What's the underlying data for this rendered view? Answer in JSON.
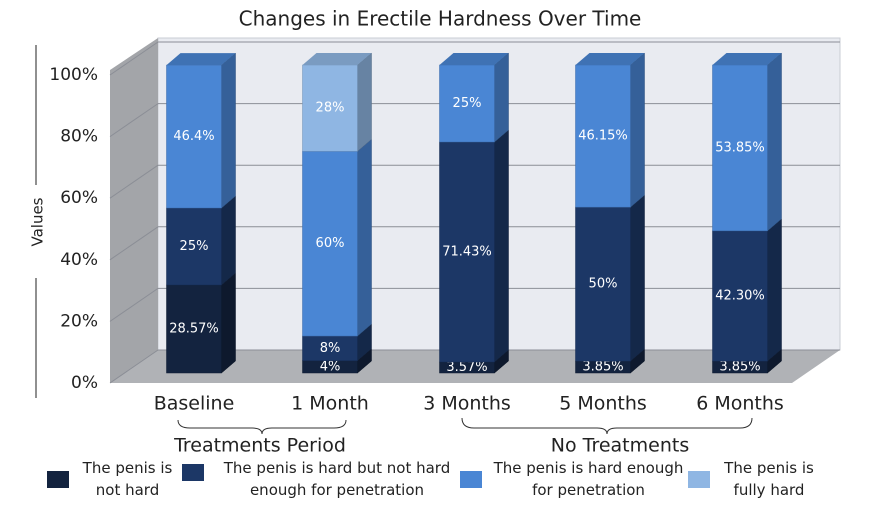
{
  "chart_data": {
    "type": "bar3d-stacked",
    "title": "Changes in Erectile Hardness Over Time",
    "y_label": "Values",
    "categories": [
      "Baseline",
      "1 Month",
      "3 Months",
      "5 Months",
      "6 Months"
    ],
    "groups": [
      "Treatments Period",
      "No Treatments"
    ],
    "series": [
      {
        "name": "The penis is not hard",
        "color": "#13233f",
        "values": [
          28.57,
          4,
          3.57,
          3.85,
          3.85
        ],
        "value_labels": [
          "28.57%",
          "4%",
          "3.57%",
          "3.85%",
          "3.85%"
        ]
      },
      {
        "name": "The penis is hard but not hard enough for penetration",
        "color": "#1c3766",
        "values": [
          25,
          8,
          71.43,
          50,
          42.3
        ],
        "value_labels": [
          "25%",
          "8%",
          "71.43%",
          "50%",
          "42.30%"
        ]
      },
      {
        "name": "The penis is hard enough for penetration",
        "color": "#4a86d4",
        "values": [
          46.4,
          60,
          25,
          46.15,
          53.85
        ],
        "value_labels": [
          "46.4%",
          "60%",
          "25%",
          "46.15%",
          "53.85%"
        ]
      },
      {
        "name": "The penis is fully hard",
        "color": "#8fb6e3",
        "values": [
          null,
          28,
          null,
          null,
          null
        ],
        "value_labels": [
          null,
          "28%",
          null,
          null,
          null
        ]
      }
    ],
    "ylim": [
      0,
      100
    ],
    "yticks": [
      {
        "value": 0,
        "label": "0%"
      },
      {
        "value": 20,
        "label": "20%"
      },
      {
        "value": 40,
        "label": "40%"
      },
      {
        "value": 60,
        "label": "60%"
      },
      {
        "value": 80,
        "label": "80%"
      },
      {
        "value": 100,
        "label": "100%"
      }
    ],
    "grid": true
  }
}
